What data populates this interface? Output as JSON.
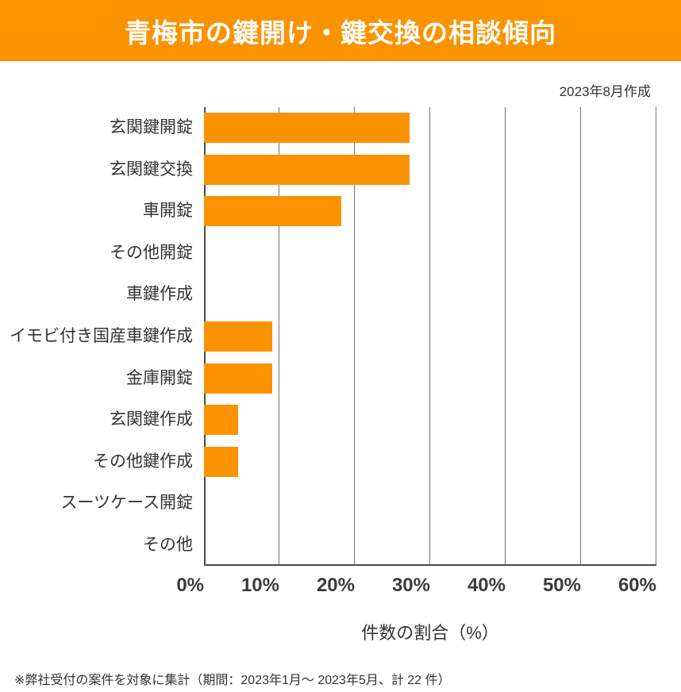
{
  "header": {
    "title": "青梅市の鍵開け・鍵交換の相談傾向",
    "bg_color": "#FB9300",
    "text_color": "#FFFFFF"
  },
  "meta": {
    "created_label": "2023年8月作成"
  },
  "chart_data": {
    "type": "bar",
    "orientation": "horizontal",
    "title": "青梅市の鍵開け・鍵交換の相談傾向",
    "categories": [
      "玄関鍵開錠",
      "玄関鍵交換",
      "車開錠",
      "その他開錠",
      "車鍵作成",
      "イモビ付き国産車鍵作成",
      "金庫開錠",
      "玄関鍵作成",
      "その他鍵作成",
      "スーツケース開錠",
      "その他"
    ],
    "values": [
      27.3,
      27.3,
      18.2,
      0,
      0,
      9.1,
      9.1,
      4.5,
      4.5,
      0,
      0
    ],
    "xlabel": "件数の割合（%）",
    "x_ticks": [
      "0%",
      "10%",
      "20%",
      "30%",
      "40%",
      "50%",
      "60%"
    ],
    "xlim": [
      0,
      60
    ],
    "bar_color": "#FB9300",
    "grid": true,
    "legend": false
  },
  "footer": {
    "note": "※弊社受付の案件を対象に集計（期間：2023年1月～ 2023年5月、計 22 件）"
  }
}
